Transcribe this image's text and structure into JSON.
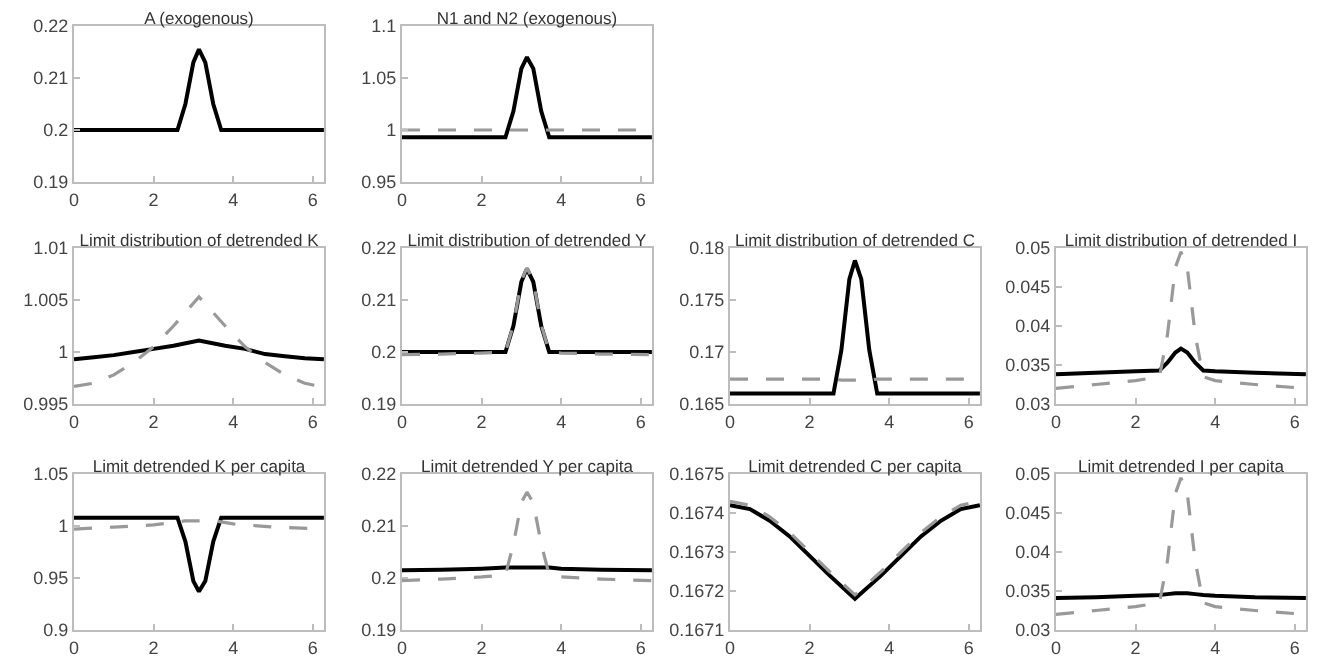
{
  "chart_data": [
    {
      "type": "line",
      "title": "A (exogenous)",
      "x": [
        0,
        1,
        2,
        2.6,
        2.8,
        3.0,
        3.14,
        3.3,
        3.5,
        3.7,
        4,
        5,
        6.28
      ],
      "xlim": [
        0,
        6.2832
      ],
      "xticks": [
        0,
        2,
        4,
        6
      ],
      "ylim": [
        0.19,
        0.22
      ],
      "yticks": [
        0.19,
        0.2,
        0.21,
        0.22
      ],
      "series": [
        {
          "color": "#000000",
          "line_style": "solid",
          "values": [
            0.2,
            0.2,
            0.2,
            0.2,
            0.205,
            0.213,
            0.2155,
            0.213,
            0.205,
            0.2,
            0.2,
            0.2,
            0.2
          ]
        }
      ]
    },
    {
      "type": "line",
      "title": "N1 and N2 (exogenous)",
      "x": [
        0,
        1,
        2,
        2.6,
        2.8,
        3.0,
        3.14,
        3.3,
        3.5,
        3.7,
        4,
        5,
        6.28
      ],
      "xlim": [
        0,
        6.2832
      ],
      "xticks": [
        0,
        2,
        4,
        6
      ],
      "ylim": [
        0.95,
        1.1
      ],
      "yticks": [
        0.95,
        1,
        1.05,
        1.1
      ],
      "series": [
        {
          "color": "#000000",
          "line_style": "solid",
          "values": [
            0.993,
            0.993,
            0.993,
            0.993,
            1.018,
            1.059,
            1.07,
            1.059,
            1.018,
            0.993,
            0.993,
            0.993,
            0.993
          ]
        },
        {
          "color": "#999999",
          "line_style": "dashed",
          "values": [
            1,
            1,
            1,
            1,
            1,
            1,
            1,
            1,
            1,
            1,
            1,
            1,
            1
          ]
        }
      ]
    },
    {
      "type": "line",
      "title": "Limit distribution of detrended K",
      "x": [
        0,
        0.5,
        1,
        1.5,
        2,
        2.5,
        3.14,
        3.8,
        4.3,
        4.8,
        5.3,
        5.8,
        6.28
      ],
      "xlim": [
        0,
        6.2832
      ],
      "xticks": [
        0,
        2,
        4,
        6
      ],
      "ylim": [
        0.995,
        1.01
      ],
      "yticks": [
        0.995,
        1,
        1.005,
        1.01
      ],
      "series": [
        {
          "color": "#000000",
          "line_style": "solid",
          "values": [
            0.9993,
            0.9995,
            0.9997,
            1.0,
            1.0003,
            1.0006,
            1.0011,
            1.0006,
            1.0003,
            0.9998,
            0.9996,
            0.9994,
            0.9993
          ]
        },
        {
          "color": "#999999",
          "line_style": "dashed",
          "values": [
            0.9967,
            0.997,
            0.9978,
            0.999,
            1.0005,
            1.0025,
            1.0053,
            1.0025,
            1.0005,
            0.999,
            0.9978,
            0.997,
            0.9966
          ]
        }
      ]
    },
    {
      "type": "line",
      "title": "Limit distribution of detrended Y",
      "x": [
        0,
        1,
        2,
        2.6,
        2.8,
        3.0,
        3.14,
        3.3,
        3.5,
        3.7,
        4,
        5,
        6.28
      ],
      "xlim": [
        0,
        6.2832
      ],
      "xticks": [
        0,
        2,
        4,
        6
      ],
      "ylim": [
        0.19,
        0.22
      ],
      "yticks": [
        0.19,
        0.2,
        0.21,
        0.22
      ],
      "series": [
        {
          "color": "#000000",
          "line_style": "solid",
          "values": [
            0.2,
            0.2,
            0.2,
            0.2,
            0.205,
            0.2135,
            0.216,
            0.2135,
            0.205,
            0.2,
            0.2,
            0.2,
            0.2
          ]
        },
        {
          "color": "#999999",
          "line_style": "dashed",
          "values": [
            0.1995,
            0.1996,
            0.1998,
            0.2,
            0.2052,
            0.2137,
            0.2162,
            0.2137,
            0.2052,
            0.2,
            0.1998,
            0.1996,
            0.1995
          ]
        }
      ]
    },
    {
      "type": "line",
      "title": "Limit distribution of detrended C",
      "x": [
        0,
        1,
        2,
        2.6,
        2.8,
        3.0,
        3.14,
        3.3,
        3.5,
        3.7,
        4,
        5,
        6.28
      ],
      "xlim": [
        0,
        6.2832
      ],
      "xticks": [
        0,
        2,
        4,
        6
      ],
      "ylim": [
        0.165,
        0.18
      ],
      "yticks": [
        0.165,
        0.17,
        0.175,
        0.18
      ],
      "series": [
        {
          "color": "#000000",
          "line_style": "solid",
          "values": [
            0.166,
            0.166,
            0.166,
            0.166,
            0.1702,
            0.177,
            0.1788,
            0.177,
            0.1702,
            0.166,
            0.166,
            0.166,
            0.166
          ]
        },
        {
          "color": "#999999",
          "line_style": "dashed",
          "values": [
            0.1674,
            0.1674,
            0.1674,
            0.1674,
            0.1673,
            0.1673,
            0.1673,
            0.1673,
            0.1673,
            0.1674,
            0.1674,
            0.1674,
            0.1674
          ]
        }
      ]
    },
    {
      "type": "line",
      "title": "Limit distribution of detrended I",
      "x": [
        0,
        1,
        2,
        2.6,
        2.8,
        3.0,
        3.14,
        3.3,
        3.5,
        3.7,
        4,
        5,
        6.28
      ],
      "xlim": [
        0,
        6.2832
      ],
      "xticks": [
        0,
        2,
        4,
        6
      ],
      "ylim": [
        0.03,
        0.05
      ],
      "yticks": [
        0.03,
        0.035,
        0.04,
        0.045,
        0.05
      ],
      "series": [
        {
          "color": "#000000",
          "line_style": "solid",
          "values": [
            0.0338,
            0.034,
            0.0342,
            0.0343,
            0.0353,
            0.0366,
            0.0371,
            0.0366,
            0.0353,
            0.0343,
            0.0342,
            0.034,
            0.0338
          ]
        },
        {
          "color": "#999999",
          "line_style": "dashed",
          "values": [
            0.032,
            0.0325,
            0.033,
            0.0335,
            0.0388,
            0.0475,
            0.0495,
            0.0475,
            0.0388,
            0.0335,
            0.033,
            0.0325,
            0.032
          ]
        }
      ]
    },
    {
      "type": "line",
      "title": "Limit detrended K per capita",
      "x": [
        0,
        1,
        2,
        2.6,
        2.8,
        3.0,
        3.14,
        3.3,
        3.5,
        3.7,
        4,
        5,
        6.28
      ],
      "xlim": [
        0,
        6.2832
      ],
      "xticks": [
        0,
        2,
        4,
        6
      ],
      "ylim": [
        0.9,
        1.05
      ],
      "yticks": [
        0.9,
        0.95,
        1,
        1.05
      ],
      "series": [
        {
          "color": "#000000",
          "line_style": "solid",
          "values": [
            1.008,
            1.008,
            1.008,
            1.008,
            0.985,
            0.947,
            0.937,
            0.947,
            0.985,
            1.008,
            1.008,
            1.008,
            1.008
          ]
        },
        {
          "color": "#999999",
          "line_style": "dashed",
          "values": [
            0.997,
            0.999,
            1.001,
            1.004,
            1.005,
            1.005,
            1.005,
            1.005,
            1.005,
            1.004,
            1.002,
            0.999,
            0.997
          ]
        }
      ]
    },
    {
      "type": "line",
      "title": "Limit detrended Y per capita",
      "x": [
        0,
        1,
        2,
        2.6,
        2.8,
        3.0,
        3.14,
        3.3,
        3.5,
        3.7,
        4,
        5,
        6.28
      ],
      "xlim": [
        0,
        6.2832
      ],
      "xticks": [
        0,
        2,
        4,
        6
      ],
      "ylim": [
        0.19,
        0.22
      ],
      "yticks": [
        0.19,
        0.2,
        0.21,
        0.22
      ],
      "series": [
        {
          "color": "#000000",
          "line_style": "solid",
          "values": [
            0.2015,
            0.2016,
            0.2018,
            0.202,
            0.202,
            0.202,
            0.202,
            0.202,
            0.202,
            0.202,
            0.2018,
            0.2016,
            0.2015
          ]
        },
        {
          "color": "#999999",
          "line_style": "dashed",
          "values": [
            0.1995,
            0.1998,
            0.2002,
            0.2006,
            0.2065,
            0.2145,
            0.2165,
            0.2145,
            0.2065,
            0.2006,
            0.2002,
            0.1998,
            0.1995
          ]
        }
      ]
    },
    {
      "type": "line",
      "title": "Limit detrended C per capita",
      "x": [
        0,
        0.5,
        1,
        1.5,
        2,
        2.5,
        3.14,
        3.8,
        4.3,
        4.8,
        5.3,
        5.8,
        6.28
      ],
      "xlim": [
        0,
        6.2832
      ],
      "xticks": [
        0,
        2,
        4,
        6
      ],
      "ylim": [
        0.1671,
        0.1675
      ],
      "yticks": [
        0.1671,
        0.1672,
        0.1673,
        0.1674,
        0.1675
      ],
      "series": [
        {
          "color": "#000000",
          "line_style": "solid",
          "values": [
            0.16742,
            0.16741,
            0.16738,
            0.16734,
            0.16729,
            0.16724,
            0.16718,
            0.16724,
            0.16729,
            0.16734,
            0.16738,
            0.16741,
            0.16742
          ]
        },
        {
          "color": "#999999",
          "line_style": "dashed",
          "values": [
            0.16743,
            0.16742,
            0.16739,
            0.16735,
            0.1673,
            0.16725,
            0.16719,
            0.16725,
            0.1673,
            0.16735,
            0.16739,
            0.16742,
            0.16743
          ]
        }
      ]
    },
    {
      "type": "line",
      "title": "Limit detrended I per capita",
      "x": [
        0,
        1,
        2,
        2.6,
        2.8,
        3.0,
        3.14,
        3.3,
        3.5,
        3.7,
        4,
        5,
        6.28
      ],
      "xlim": [
        0,
        6.2832
      ],
      "xticks": [
        0,
        2,
        4,
        6
      ],
      "ylim": [
        0.03,
        0.05
      ],
      "yticks": [
        0.03,
        0.035,
        0.04,
        0.045,
        0.05
      ],
      "series": [
        {
          "color": "#000000",
          "line_style": "solid",
          "values": [
            0.0341,
            0.0342,
            0.0344,
            0.0345,
            0.0346,
            0.0347,
            0.0347,
            0.0347,
            0.0346,
            0.0345,
            0.0344,
            0.0342,
            0.0341
          ]
        },
        {
          "color": "#999999",
          "line_style": "dashed",
          "values": [
            0.032,
            0.0325,
            0.033,
            0.0335,
            0.0388,
            0.0475,
            0.0495,
            0.0475,
            0.0388,
            0.0335,
            0.033,
            0.0325,
            0.032
          ]
        }
      ]
    }
  ]
}
